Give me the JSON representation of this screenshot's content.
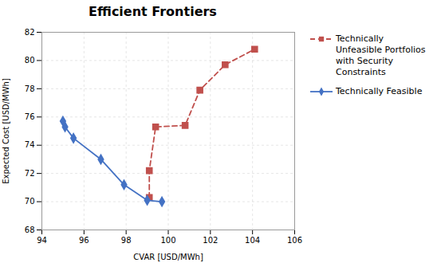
{
  "chart_data": {
    "type": "line",
    "title": "Efficient Frontiers",
    "xlabel": "CVAR [USD/MWh]",
    "ylabel": "Expected Cost [USD/MWh]",
    "xlim": [
      94,
      106
    ],
    "ylim": [
      68,
      82
    ],
    "xticks": [
      94,
      96,
      98,
      100,
      102,
      104,
      106
    ],
    "yticks": [
      68,
      70,
      72,
      74,
      76,
      78,
      80,
      82
    ],
    "grid": true,
    "legend": "right",
    "series": [
      {
        "name": "Technically\nUnfeasible Portfolios\nwith Security\nConstraints",
        "color": "#C0504D",
        "x": [
          99.1,
          99.1,
          99.4,
          100.8,
          101.5,
          102.7,
          104.1
        ],
        "values": [
          70.3,
          72.2,
          75.3,
          75.4,
          77.9,
          79.7,
          80.8
        ],
        "marker": "square",
        "line_style": "dashed"
      },
      {
        "name": "Technically Feasible",
        "color": "#4472C4",
        "x": [
          95.0,
          95.1,
          95.5,
          96.8,
          97.9,
          99.0,
          99.7
        ],
        "values": [
          75.7,
          75.3,
          74.5,
          73.0,
          71.2,
          70.1,
          70.0
        ],
        "marker": "diamond",
        "line_style": "solid"
      }
    ]
  }
}
